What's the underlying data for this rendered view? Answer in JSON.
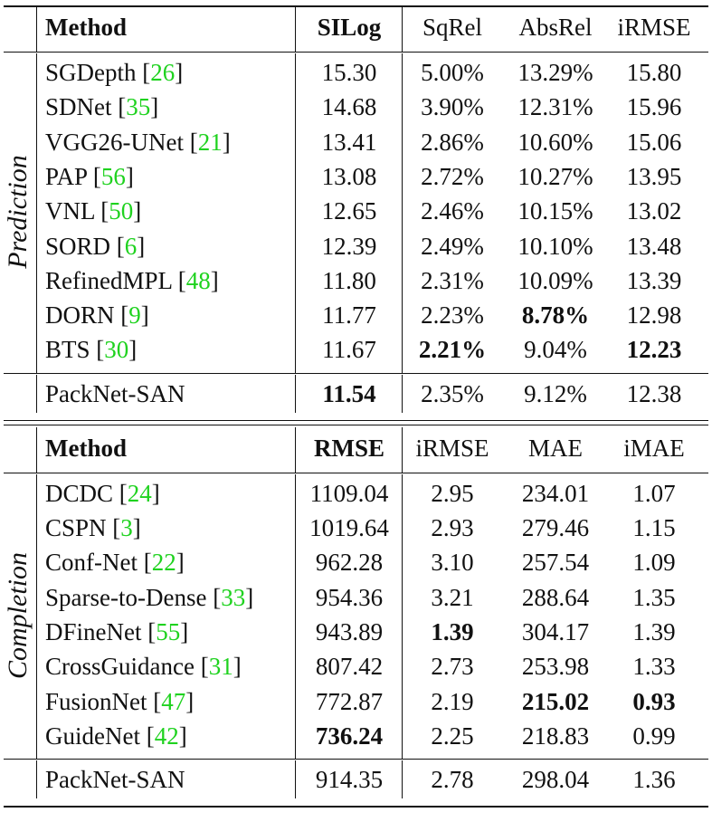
{
  "prediction": {
    "side_label": "Prediction",
    "headers": [
      "Method",
      "SILog",
      "SqRel",
      "AbsRel",
      "iRMSE"
    ],
    "rows": [
      {
        "method": "SGDepth",
        "ref": "26",
        "values": [
          "15.30",
          "5.00%",
          "13.29%",
          "15.80"
        ],
        "bold": []
      },
      {
        "method": "SDNet",
        "ref": "35",
        "values": [
          "14.68",
          "3.90%",
          "12.31%",
          "15.96"
        ],
        "bold": []
      },
      {
        "method": "VGG26-UNet",
        "ref": "21",
        "values": [
          "13.41",
          "2.86%",
          "10.60%",
          "15.06"
        ],
        "bold": []
      },
      {
        "method": "PAP",
        "ref": "56",
        "values": [
          "13.08",
          "2.72%",
          "10.27%",
          "13.95"
        ],
        "bold": []
      },
      {
        "method": "VNL",
        "ref": "50",
        "values": [
          "12.65",
          "2.46%",
          "10.15%",
          "13.02"
        ],
        "bold": []
      },
      {
        "method": "SORD",
        "ref": "6",
        "values": [
          "12.39",
          "2.49%",
          "10.10%",
          "13.48"
        ],
        "bold": []
      },
      {
        "method": "RefinedMPL",
        "ref": "48",
        "values": [
          "11.80",
          "2.31%",
          "10.09%",
          "13.39"
        ],
        "bold": []
      },
      {
        "method": "DORN",
        "ref": "9",
        "values": [
          "11.77",
          "2.23%",
          "8.78%",
          "12.98"
        ],
        "bold": [
          2
        ]
      },
      {
        "method": "BTS",
        "ref": "30",
        "values": [
          "11.67",
          "2.21%",
          "9.04%",
          "12.23"
        ],
        "bold": [
          1,
          3
        ]
      }
    ],
    "ours": {
      "method": "PackNet-SAN",
      "ref": "",
      "values": [
        "11.54",
        "2.35%",
        "9.12%",
        "12.38"
      ],
      "bold": [
        0
      ]
    }
  },
  "completion": {
    "side_label": "Completion",
    "headers": [
      "Method",
      "RMSE",
      "iRMSE",
      "MAE",
      "iMAE"
    ],
    "rows": [
      {
        "method": "DCDC",
        "ref": "24",
        "values": [
          "1109.04",
          "2.95",
          "234.01",
          "1.07"
        ],
        "bold": []
      },
      {
        "method": "CSPN",
        "ref": "3",
        "values": [
          "1019.64",
          "2.93",
          "279.46",
          "1.15"
        ],
        "bold": []
      },
      {
        "method": "Conf-Net",
        "ref": "22",
        "values": [
          "962.28",
          "3.10",
          "257.54",
          "1.09"
        ],
        "bold": []
      },
      {
        "method": "Sparse-to-Dense",
        "ref": "33",
        "values": [
          "954.36",
          "3.21",
          "288.64",
          "1.35"
        ],
        "bold": []
      },
      {
        "method": "DFineNet",
        "ref": "55",
        "values": [
          "943.89",
          "1.39",
          "304.17",
          "1.39"
        ],
        "bold": [
          1
        ]
      },
      {
        "method": "CrossGuidance",
        "ref": "31",
        "values": [
          "807.42",
          "2.73",
          "253.98",
          "1.33"
        ],
        "bold": []
      },
      {
        "method": "FusionNet",
        "ref": "47",
        "values": [
          "772.87",
          "2.19",
          "215.02",
          "0.93"
        ],
        "bold": [
          2,
          3
        ]
      },
      {
        "method": "GuideNet",
        "ref": "42",
        "values": [
          "736.24",
          "2.25",
          "218.83",
          "0.99"
        ],
        "bold": [
          0
        ]
      }
    ],
    "ours": {
      "method": "PackNet-SAN",
      "ref": "",
      "values": [
        "914.35",
        "2.78",
        "298.04",
        "1.36"
      ],
      "bold": []
    }
  }
}
